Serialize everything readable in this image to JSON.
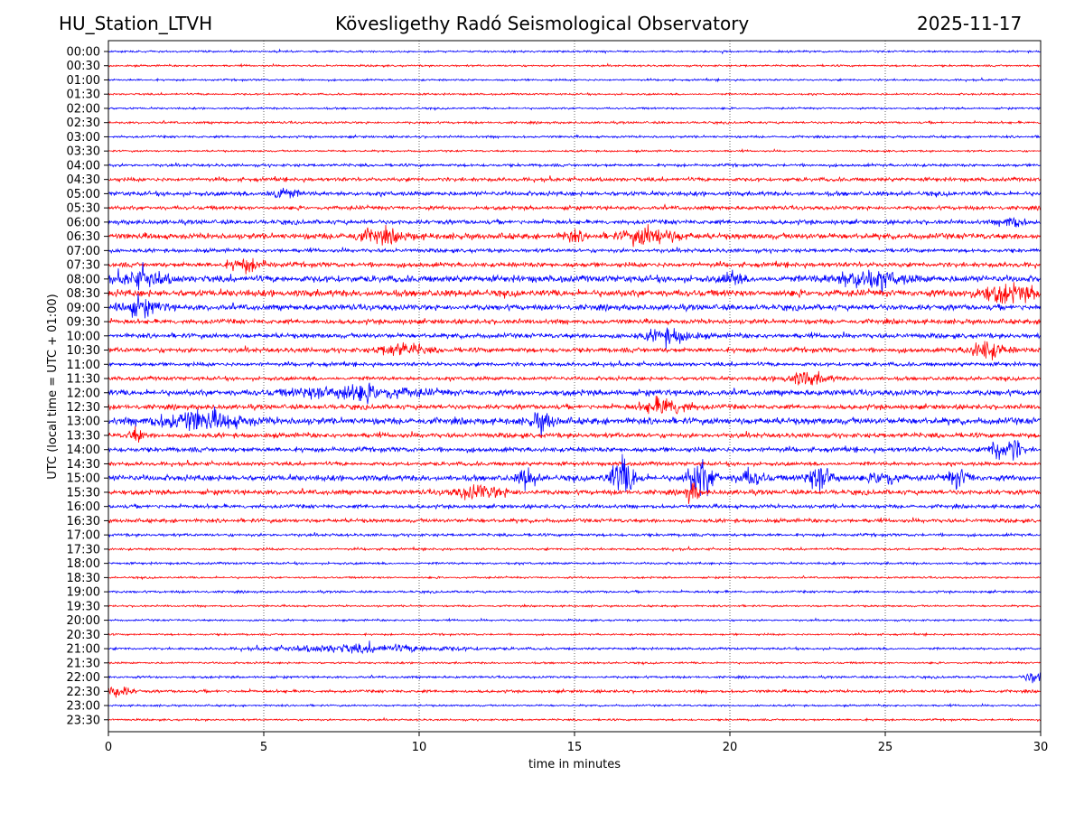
{
  "header": {
    "station": "HU_Station_LTVH",
    "observatory": "Kövesligethy Radó Seismological Observatory",
    "date": "2025-11-17"
  },
  "chart_data": {
    "type": "line",
    "title": "Kövesligethy Radó Seismological Observatory",
    "xlabel": "time in minutes",
    "ylabel": "UTC (local time = UTC + 01:00)",
    "xlim": [
      0,
      30
    ],
    "xticks": [
      "0",
      "5",
      "10",
      "15",
      "20",
      "25",
      "30"
    ],
    "grid": "vertical dotted at 5-minute intervals",
    "colors": [
      "#0000ff",
      "#ff0000"
    ],
    "traces": [
      {
        "label": "00:00",
        "noise": 1
      },
      {
        "label": "00:30",
        "noise": 1
      },
      {
        "label": "01:00",
        "noise": 1
      },
      {
        "label": "01:30",
        "noise": 1
      },
      {
        "label": "02:00",
        "noise": 1
      },
      {
        "label": "02:30",
        "noise": 1.2
      },
      {
        "label": "03:00",
        "noise": 1.2
      },
      {
        "label": "03:30",
        "noise": 1
      },
      {
        "label": "04:00",
        "noise": 1.5
      },
      {
        "label": "04:30",
        "noise": 2
      },
      {
        "label": "05:00",
        "noise": 2.3
      },
      {
        "label": "05:30",
        "noise": 2
      },
      {
        "label": "06:00",
        "noise": 2.3
      },
      {
        "label": "06:30",
        "noise": 3
      },
      {
        "label": "07:00",
        "noise": 2
      },
      {
        "label": "07:30",
        "noise": 2.5
      },
      {
        "label": "08:00",
        "noise": 3.5
      },
      {
        "label": "08:30",
        "noise": 3.5
      },
      {
        "label": "09:00",
        "noise": 3
      },
      {
        "label": "09:30",
        "noise": 2.5
      },
      {
        "label": "10:00",
        "noise": 2.5
      },
      {
        "label": "10:30",
        "noise": 2.5
      },
      {
        "label": "11:00",
        "noise": 2
      },
      {
        "label": "11:30",
        "noise": 2
      },
      {
        "label": "12:00",
        "noise": 3
      },
      {
        "label": "12:30",
        "noise": 2.5
      },
      {
        "label": "13:00",
        "noise": 3.5
      },
      {
        "label": "13:30",
        "noise": 2.5
      },
      {
        "label": "14:00",
        "noise": 2.5
      },
      {
        "label": "14:30",
        "noise": 2
      },
      {
        "label": "15:00",
        "noise": 3
      },
      {
        "label": "15:30",
        "noise": 2.5
      },
      {
        "label": "16:00",
        "noise": 2
      },
      {
        "label": "16:30",
        "noise": 2
      },
      {
        "label": "17:00",
        "noise": 1.5
      },
      {
        "label": "17:30",
        "noise": 1.2
      },
      {
        "label": "18:00",
        "noise": 1.2
      },
      {
        "label": "18:30",
        "noise": 1
      },
      {
        "label": "19:00",
        "noise": 1.2
      },
      {
        "label": "19:30",
        "noise": 1
      },
      {
        "label": "20:00",
        "noise": 1
      },
      {
        "label": "20:30",
        "noise": 1
      },
      {
        "label": "21:00",
        "noise": 1.2
      },
      {
        "label": "21:30",
        "noise": 1
      },
      {
        "label": "22:00",
        "noise": 1.2
      },
      {
        "label": "22:30",
        "noise": 1.5
      },
      {
        "label": "23:00",
        "noise": 1
      },
      {
        "label": "23:30",
        "noise": 1
      }
    ],
    "events": [
      {
        "trace": "05:00",
        "minute": 5.6,
        "amp": 5,
        "dur": 0.6
      },
      {
        "trace": "06:00",
        "minute": 29.1,
        "amp": 5,
        "dur": 0.5
      },
      {
        "trace": "06:30",
        "minute": 8.8,
        "amp": 5,
        "dur": 1.2
      },
      {
        "trace": "06:30",
        "minute": 15,
        "amp": 4,
        "dur": 0.5
      },
      {
        "trace": "06:30",
        "minute": 17.5,
        "amp": 7,
        "dur": 1.2
      },
      {
        "trace": "07:30",
        "minute": 4.5,
        "amp": 5,
        "dur": 0.8
      },
      {
        "trace": "08:00",
        "minute": 1.2,
        "amp": 6,
        "dur": 1
      },
      {
        "trace": "08:00",
        "minute": 20.1,
        "amp": 6,
        "dur": 0.4
      },
      {
        "trace": "08:00",
        "minute": 24.5,
        "amp": 7,
        "dur": 1.5
      },
      {
        "trace": "08:30",
        "minute": 29,
        "amp": 6,
        "dur": 1.5
      },
      {
        "trace": "09:00",
        "minute": 1,
        "amp": 6,
        "dur": 1
      },
      {
        "trace": "10:00",
        "minute": 18.1,
        "amp": 6,
        "dur": 1
      },
      {
        "trace": "10:30",
        "minute": 9.5,
        "amp": 5,
        "dur": 1
      },
      {
        "trace": "10:30",
        "minute": 28.3,
        "amp": 7,
        "dur": 0.8
      },
      {
        "trace": "11:30",
        "minute": 22.5,
        "amp": 5,
        "dur": 1
      },
      {
        "trace": "12:00",
        "minute": 8,
        "amp": 6,
        "dur": 2.5
      },
      {
        "trace": "12:30",
        "minute": 18,
        "amp": 7,
        "dur": 1
      },
      {
        "trace": "13:00",
        "minute": 3,
        "amp": 7,
        "dur": 2
      },
      {
        "trace": "13:00",
        "minute": 14,
        "amp": 7,
        "dur": 0.5
      },
      {
        "trace": "13:30",
        "minute": 0.9,
        "amp": 6,
        "dur": 0.3
      },
      {
        "trace": "14:00",
        "minute": 28.7,
        "amp": 10,
        "dur": 0.4
      },
      {
        "trace": "14:00",
        "minute": 29.2,
        "amp": 8,
        "dur": 0.3
      },
      {
        "trace": "15:00",
        "minute": 13.5,
        "amp": 8,
        "dur": 0.4
      },
      {
        "trace": "15:00",
        "minute": 16.6,
        "amp": 15,
        "dur": 0.6
      },
      {
        "trace": "15:00",
        "minute": 19.1,
        "amp": 15,
        "dur": 0.6
      },
      {
        "trace": "15:00",
        "minute": 20.7,
        "amp": 6,
        "dur": 0.6
      },
      {
        "trace": "15:00",
        "minute": 23,
        "amp": 12,
        "dur": 0.6
      },
      {
        "trace": "15:00",
        "minute": 25,
        "amp": 7,
        "dur": 0.5
      },
      {
        "trace": "15:00",
        "minute": 27.4,
        "amp": 7,
        "dur": 0.5
      },
      {
        "trace": "15:30",
        "minute": 12,
        "amp": 5,
        "dur": 1.2
      },
      {
        "trace": "15:30",
        "minute": 18.8,
        "amp": 8,
        "dur": 0.3
      },
      {
        "trace": "21:00",
        "minute": 8.5,
        "amp": 3,
        "dur": 4
      },
      {
        "trace": "22:00",
        "minute": 29.8,
        "amp": 5,
        "dur": 0.4
      },
      {
        "trace": "22:30",
        "minute": 0.3,
        "amp": 5,
        "dur": 0.6
      }
    ]
  }
}
